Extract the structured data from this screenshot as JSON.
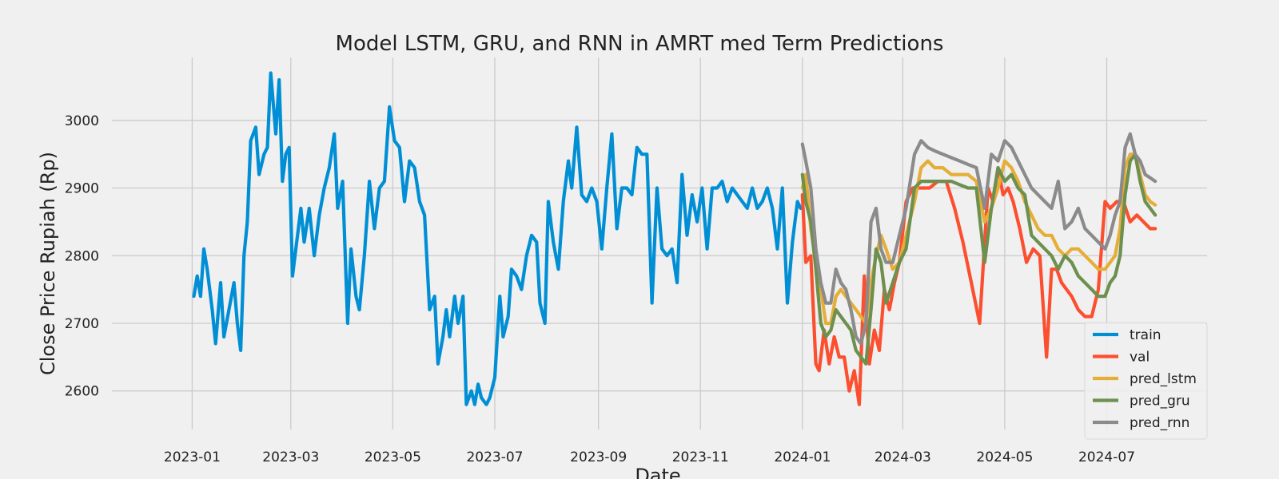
{
  "chart_data": {
    "type": "line",
    "title": "Model LSTM, GRU, and RNN in AMRT med Term Predictions",
    "xlabel": "Date",
    "ylabel": "Close Price Rupiah (Rp)",
    "xlim": [
      "2022-11-14",
      "2024-08-30"
    ],
    "ylim": [
      2543,
      3093
    ],
    "x_ticks": [
      "2023-01",
      "2023-03",
      "2023-05",
      "2023-07",
      "2023-09",
      "2023-11",
      "2024-01",
      "2024-03",
      "2024-05",
      "2024-07"
    ],
    "y_ticks": [
      2600,
      2700,
      2800,
      2900,
      3000
    ],
    "grid": true,
    "legend_position": "lower-right",
    "series": [
      {
        "name": "train",
        "color": "#008fd5",
        "x": [
          "2023-01-02",
          "2023-01-04",
          "2023-01-06",
          "2023-01-08",
          "2023-01-10",
          "2023-01-13",
          "2023-01-15",
          "2023-01-18",
          "2023-01-20",
          "2023-01-23",
          "2023-01-26",
          "2023-01-28",
          "2023-01-30",
          "2023-02-01",
          "2023-02-03",
          "2023-02-05",
          "2023-02-08",
          "2023-02-10",
          "2023-02-13",
          "2023-02-15",
          "2023-02-17",
          "2023-02-20",
          "2023-02-22",
          "2023-02-24",
          "2023-02-26",
          "2023-02-28",
          "2023-03-02",
          "2023-03-04",
          "2023-03-07",
          "2023-03-09",
          "2023-03-12",
          "2023-03-15",
          "2023-03-18",
          "2023-03-21",
          "2023-03-24",
          "2023-03-27",
          "2023-03-29",
          "2023-04-01",
          "2023-04-04",
          "2023-04-06",
          "2023-04-09",
          "2023-04-11",
          "2023-04-14",
          "2023-04-17",
          "2023-04-20",
          "2023-04-23",
          "2023-04-26",
          "2023-04-29",
          "2023-05-02",
          "2023-05-05",
          "2023-05-08",
          "2023-05-11",
          "2023-05-14",
          "2023-05-17",
          "2023-05-20",
          "2023-05-23",
          "2023-05-26",
          "2023-05-28",
          "2023-05-31",
          "2023-06-02",
          "2023-06-04",
          "2023-06-07",
          "2023-06-09",
          "2023-06-12",
          "2023-06-14",
          "2023-06-17",
          "2023-06-19",
          "2023-06-21",
          "2023-06-23",
          "2023-06-26",
          "2023-06-28",
          "2023-07-01",
          "2023-07-04",
          "2023-07-06",
          "2023-07-09",
          "2023-07-11",
          "2023-07-14",
          "2023-07-17",
          "2023-07-20",
          "2023-07-23",
          "2023-07-26",
          "2023-07-28",
          "2023-07-31",
          "2023-08-02",
          "2023-08-05",
          "2023-08-08",
          "2023-08-11",
          "2023-08-14",
          "2023-08-16",
          "2023-08-19",
          "2023-08-22",
          "2023-08-25",
          "2023-08-28",
          "2023-08-31",
          "2023-09-03",
          "2023-09-06",
          "2023-09-09",
          "2023-09-12",
          "2023-09-15",
          "2023-09-18",
          "2023-09-21",
          "2023-09-24",
          "2023-09-27",
          "2023-09-30",
          "2023-10-03",
          "2023-10-06",
          "2023-10-09",
          "2023-10-12",
          "2023-10-15",
          "2023-10-18",
          "2023-10-21",
          "2023-10-24",
          "2023-10-27",
          "2023-10-30",
          "2023-11-02",
          "2023-11-05",
          "2023-11-08",
          "2023-11-11",
          "2023-11-14",
          "2023-11-17",
          "2023-11-20",
          "2023-11-23",
          "2023-11-26",
          "2023-11-29",
          "2023-12-02",
          "2023-12-05",
          "2023-12-08",
          "2023-12-11",
          "2023-12-14",
          "2023-12-17",
          "2023-12-20",
          "2023-12-23",
          "2023-12-26",
          "2023-12-29",
          "2023-12-31"
        ],
        "y": [
          2740,
          2770,
          2740,
          2810,
          2780,
          2720,
          2670,
          2760,
          2680,
          2720,
          2760,
          2700,
          2660,
          2800,
          2850,
          2970,
          2990,
          2920,
          2950,
          2960,
          3070,
          2980,
          3060,
          2910,
          2950,
          2960,
          2770,
          2810,
          2870,
          2820,
          2870,
          2800,
          2860,
          2900,
          2930,
          2980,
          2870,
          2910,
          2700,
          2810,
          2740,
          2720,
          2800,
          2910,
          2840,
          2900,
          2910,
          3020,
          2970,
          2960,
          2880,
          2940,
          2930,
          2880,
          2860,
          2720,
          2740,
          2640,
          2680,
          2720,
          2680,
          2740,
          2700,
          2740,
          2580,
          2600,
          2580,
          2610,
          2590,
          2580,
          2590,
          2620,
          2740,
          2680,
          2710,
          2780,
          2770,
          2750,
          2800,
          2830,
          2820,
          2730,
          2700,
          2880,
          2820,
          2780,
          2880,
          2940,
          2900,
          2990,
          2890,
          2880,
          2900,
          2880,
          2810,
          2900,
          2980,
          2840,
          2900,
          2900,
          2890,
          2960,
          2950,
          2950,
          2730,
          2900,
          2810,
          2800,
          2810,
          2760,
          2920,
          2830,
          2890,
          2850,
          2900,
          2810,
          2900,
          2900,
          2910,
          2880,
          2900,
          2890,
          2880,
          2870,
          2900,
          2870,
          2880,
          2900,
          2870,
          2810,
          2900,
          2730,
          2820,
          2880,
          2870
        ]
      },
      {
        "name": "val",
        "color": "#fc4f30",
        "x": [
          "2024-01-01",
          "2024-01-03",
          "2024-01-06",
          "2024-01-09",
          "2024-01-11",
          "2024-01-14",
          "2024-01-17",
          "2024-01-20",
          "2024-01-23",
          "2024-01-26",
          "2024-01-29",
          "2024-02-01",
          "2024-02-04",
          "2024-02-07",
          "2024-02-10",
          "2024-02-13",
          "2024-02-16",
          "2024-02-19",
          "2024-02-22",
          "2024-02-25",
          "2024-02-28",
          "2024-03-03",
          "2024-03-07",
          "2024-03-12",
          "2024-03-17",
          "2024-03-22",
          "2024-03-27",
          "2024-04-01",
          "2024-04-06",
          "2024-04-11",
          "2024-04-16",
          "2024-04-21",
          "2024-04-24",
          "2024-04-27",
          "2024-04-30",
          "2024-05-03",
          "2024-05-06",
          "2024-05-10",
          "2024-05-14",
          "2024-05-18",
          "2024-05-22",
          "2024-05-26",
          "2024-05-29",
          "2024-06-01",
          "2024-06-04",
          "2024-06-07",
          "2024-06-10",
          "2024-06-14",
          "2024-06-18",
          "2024-06-22",
          "2024-06-26",
          "2024-06-30",
          "2024-07-03",
          "2024-07-07",
          "2024-07-11",
          "2024-07-15",
          "2024-07-19",
          "2024-07-23",
          "2024-07-27",
          "2024-07-30"
        ],
        "y": [
          2890,
          2790,
          2800,
          2640,
          2630,
          2690,
          2640,
          2680,
          2650,
          2650,
          2600,
          2630,
          2580,
          2770,
          2640,
          2690,
          2660,
          2750,
          2720,
          2760,
          2790,
          2880,
          2900,
          2900,
          2900,
          2910,
          2910,
          2870,
          2820,
          2760,
          2700,
          2900,
          2880,
          2930,
          2890,
          2900,
          2880,
          2840,
          2790,
          2810,
          2800,
          2650,
          2780,
          2780,
          2760,
          2750,
          2740,
          2720,
          2710,
          2710,
          2750,
          2880,
          2870,
          2880,
          2880,
          2850,
          2860,
          2850,
          2840,
          2840
        ]
      },
      {
        "name": "pred_lstm",
        "color": "#e5ae38",
        "x": [
          "2024-01-01",
          "2024-01-03",
          "2024-01-06",
          "2024-01-09",
          "2024-01-12",
          "2024-01-15",
          "2024-01-18",
          "2024-01-21",
          "2024-01-24",
          "2024-01-27",
          "2024-01-30",
          "2024-02-02",
          "2024-02-05",
          "2024-02-08",
          "2024-02-11",
          "2024-02-14",
          "2024-02-17",
          "2024-02-20",
          "2024-02-24",
          "2024-02-28",
          "2024-03-03",
          "2024-03-08",
          "2024-03-12",
          "2024-03-16",
          "2024-03-20",
          "2024-03-25",
          "2024-03-30",
          "2024-04-04",
          "2024-04-09",
          "2024-04-14",
          "2024-04-19",
          "2024-04-23",
          "2024-04-27",
          "2024-05-01",
          "2024-05-05",
          "2024-05-09",
          "2024-05-13",
          "2024-05-17",
          "2024-05-21",
          "2024-05-25",
          "2024-05-29",
          "2024-06-02",
          "2024-06-06",
          "2024-06-10",
          "2024-06-14",
          "2024-06-18",
          "2024-06-22",
          "2024-06-26",
          "2024-06-30",
          "2024-07-03",
          "2024-07-06",
          "2024-07-09",
          "2024-07-12",
          "2024-07-15",
          "2024-07-18",
          "2024-07-21",
          "2024-07-24",
          "2024-07-27",
          "2024-07-30"
        ],
        "y": [
          2900,
          2920,
          2840,
          2790,
          2750,
          2700,
          2700,
          2740,
          2750,
          2740,
          2730,
          2720,
          2710,
          2700,
          2760,
          2800,
          2830,
          2810,
          2780,
          2790,
          2830,
          2880,
          2930,
          2940,
          2930,
          2930,
          2920,
          2920,
          2920,
          2910,
          2850,
          2870,
          2900,
          2940,
          2930,
          2910,
          2880,
          2860,
          2840,
          2830,
          2830,
          2810,
          2800,
          2810,
          2810,
          2800,
          2790,
          2780,
          2780,
          2790,
          2800,
          2840,
          2930,
          2950,
          2950,
          2920,
          2890,
          2880,
          2875
        ]
      },
      {
        "name": "pred_gru",
        "color": "#6d904f",
        "x": [
          "2024-01-01",
          "2024-01-03",
          "2024-01-06",
          "2024-01-09",
          "2024-01-12",
          "2024-01-15",
          "2024-01-18",
          "2024-01-21",
          "2024-01-24",
          "2024-01-27",
          "2024-01-30",
          "2024-02-02",
          "2024-02-05",
          "2024-02-08",
          "2024-02-11",
          "2024-02-14",
          "2024-02-17",
          "2024-02-20",
          "2024-02-24",
          "2024-02-28",
          "2024-03-03",
          "2024-03-08",
          "2024-03-12",
          "2024-03-16",
          "2024-03-20",
          "2024-03-25",
          "2024-03-30",
          "2024-04-04",
          "2024-04-09",
          "2024-04-14",
          "2024-04-19",
          "2024-04-23",
          "2024-04-27",
          "2024-05-01",
          "2024-05-05",
          "2024-05-09",
          "2024-05-13",
          "2024-05-17",
          "2024-05-21",
          "2024-05-25",
          "2024-05-29",
          "2024-06-02",
          "2024-06-06",
          "2024-06-10",
          "2024-06-14",
          "2024-06-18",
          "2024-06-22",
          "2024-06-26",
          "2024-06-30",
          "2024-07-03",
          "2024-07-06",
          "2024-07-09",
          "2024-07-12",
          "2024-07-15",
          "2024-07-18",
          "2024-07-21",
          "2024-07-24",
          "2024-07-27",
          "2024-07-30"
        ],
        "y": [
          2920,
          2880,
          2850,
          2780,
          2700,
          2680,
          2690,
          2720,
          2710,
          2700,
          2690,
          2660,
          2650,
          2640,
          2720,
          2810,
          2790,
          2730,
          2760,
          2790,
          2810,
          2900,
          2910,
          2910,
          2910,
          2910,
          2910,
          2905,
          2900,
          2900,
          2790,
          2870,
          2930,
          2910,
          2920,
          2900,
          2890,
          2830,
          2820,
          2810,
          2800,
          2780,
          2800,
          2790,
          2770,
          2760,
          2750,
          2740,
          2740,
          2760,
          2770,
          2800,
          2890,
          2940,
          2950,
          2910,
          2880,
          2870,
          2860
        ]
      },
      {
        "name": "pred_rnn",
        "color": "#8b8b8b",
        "x": [
          "2024-01-01",
          "2024-01-03",
          "2024-01-06",
          "2024-01-09",
          "2024-01-12",
          "2024-01-15",
          "2024-01-18",
          "2024-01-21",
          "2024-01-24",
          "2024-01-27",
          "2024-01-30",
          "2024-02-02",
          "2024-02-05",
          "2024-02-08",
          "2024-02-11",
          "2024-02-14",
          "2024-02-17",
          "2024-02-20",
          "2024-02-24",
          "2024-02-28",
          "2024-03-03",
          "2024-03-08",
          "2024-03-12",
          "2024-03-16",
          "2024-03-20",
          "2024-03-25",
          "2024-03-30",
          "2024-04-04",
          "2024-04-09",
          "2024-04-14",
          "2024-04-19",
          "2024-04-23",
          "2024-04-27",
          "2024-05-01",
          "2024-05-05",
          "2024-05-09",
          "2024-05-13",
          "2024-05-17",
          "2024-05-21",
          "2024-05-25",
          "2024-05-29",
          "2024-06-02",
          "2024-06-06",
          "2024-06-10",
          "2024-06-14",
          "2024-06-18",
          "2024-06-22",
          "2024-06-26",
          "2024-06-30",
          "2024-07-03",
          "2024-07-06",
          "2024-07-09",
          "2024-07-12",
          "2024-07-15",
          "2024-07-18",
          "2024-07-21",
          "2024-07-24",
          "2024-07-27",
          "2024-07-30"
        ],
        "y": [
          2965,
          2940,
          2900,
          2810,
          2760,
          2730,
          2730,
          2780,
          2760,
          2750,
          2720,
          2680,
          2670,
          2700,
          2850,
          2870,
          2810,
          2790,
          2790,
          2830,
          2870,
          2950,
          2970,
          2960,
          2955,
          2950,
          2945,
          2940,
          2935,
          2930,
          2870,
          2950,
          2940,
          2970,
          2960,
          2940,
          2920,
          2900,
          2890,
          2880,
          2870,
          2910,
          2840,
          2850,
          2870,
          2840,
          2830,
          2820,
          2810,
          2830,
          2860,
          2880,
          2960,
          2980,
          2950,
          2940,
          2920,
          2915,
          2910
        ]
      }
    ]
  }
}
